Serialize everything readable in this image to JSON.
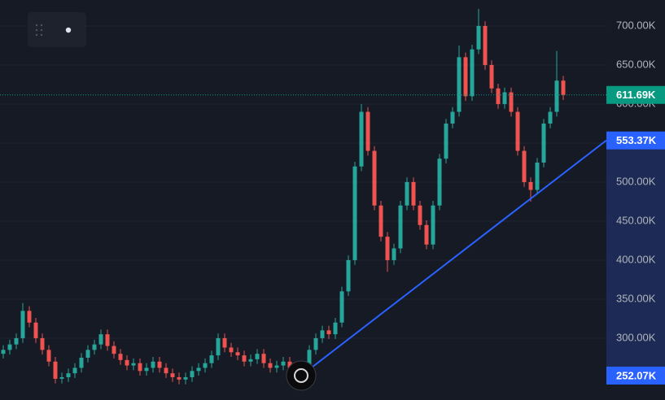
{
  "chart_data": {
    "type": "candlestick",
    "up_color": "#26a69a",
    "down_color": "#ef5350",
    "open": [
      280,
      285,
      292,
      300,
      335,
      320,
      300,
      285,
      270,
      248,
      250,
      255,
      262,
      275,
      285,
      292,
      305,
      290,
      280,
      272,
      265,
      268,
      258,
      262,
      270,
      262,
      255,
      250,
      247,
      250,
      258,
      262,
      268,
      278,
      300,
      288,
      282,
      278,
      270,
      273,
      280,
      268,
      262,
      265,
      270,
      262,
      258,
      265,
      285,
      300,
      310,
      305,
      320,
      360,
      400,
      520,
      590,
      540,
      470,
      430,
      400,
      415,
      470,
      500,
      470,
      445,
      420,
      470,
      530,
      575,
      590,
      660,
      610,
      670,
      700,
      650,
      620,
      600,
      615,
      590,
      540,
      500,
      490,
      525,
      575,
      590,
      630
    ],
    "high": [
      291,
      298,
      306,
      345,
      341,
      326,
      306,
      291,
      276,
      256,
      261,
      268,
      281,
      291,
      298,
      311,
      311,
      296,
      286,
      278,
      274,
      274,
      268,
      276,
      276,
      268,
      261,
      256,
      256,
      264,
      268,
      274,
      284,
      306,
      306,
      294,
      288,
      284,
      279,
      286,
      286,
      274,
      271,
      276,
      276,
      268,
      271,
      291,
      306,
      316,
      316,
      326,
      366,
      406,
      526,
      600,
      596,
      546,
      476,
      436,
      421,
      476,
      506,
      506,
      476,
      451,
      476,
      536,
      581,
      596,
      675,
      666,
      676,
      722,
      706,
      656,
      626,
      621,
      621,
      596,
      546,
      506,
      531,
      581,
      596,
      668,
      636
    ],
    "low": [
      274,
      279,
      286,
      294,
      314,
      294,
      279,
      264,
      242,
      242,
      244,
      249,
      256,
      269,
      279,
      286,
      284,
      274,
      266,
      259,
      259,
      252,
      252,
      256,
      256,
      249,
      244,
      241,
      241,
      244,
      252,
      256,
      262,
      272,
      282,
      276,
      272,
      264,
      264,
      267,
      262,
      256,
      256,
      259,
      256,
      252,
      252,
      259,
      279,
      294,
      299,
      299,
      314,
      354,
      394,
      514,
      534,
      464,
      424,
      385,
      394,
      409,
      464,
      464,
      439,
      414,
      414,
      464,
      524,
      569,
      584,
      604,
      604,
      664,
      644,
      614,
      594,
      594,
      584,
      534,
      494,
      475,
      484,
      519,
      569,
      584,
      605
    ],
    "close": [
      285,
      292,
      300,
      335,
      320,
      300,
      285,
      270,
      248,
      250,
      255,
      262,
      275,
      285,
      292,
      305,
      290,
      280,
      272,
      265,
      268,
      258,
      262,
      270,
      262,
      255,
      250,
      247,
      250,
      258,
      262,
      268,
      278,
      300,
      288,
      282,
      278,
      270,
      273,
      280,
      268,
      262,
      265,
      270,
      262,
      258,
      265,
      285,
      300,
      310,
      305,
      320,
      360,
      400,
      520,
      590,
      540,
      470,
      430,
      400,
      415,
      470,
      500,
      470,
      445,
      420,
      470,
      530,
      575,
      590,
      660,
      610,
      670,
      700,
      650,
      620,
      600,
      615,
      590,
      540,
      500,
      490,
      525,
      575,
      590,
      630,
      611.69
    ],
    "ylim": [
      220.8,
      733.3
    ],
    "yticks": [
      {
        "value": 300,
        "label": "300.00K"
      },
      {
        "value": 350,
        "label": "350.00K"
      },
      {
        "value": 400,
        "label": "400.00K"
      },
      {
        "value": 450,
        "label": "450.00K"
      },
      {
        "value": 500,
        "label": "500.00K"
      },
      {
        "value": 550,
        "label": "550.00K"
      },
      {
        "value": 600,
        "label": "600.00K"
      },
      {
        "value": 650,
        "label": "650.00K"
      },
      {
        "value": 700,
        "label": "700.00K"
      }
    ],
    "grid": true,
    "last_price": {
      "value": 611.69,
      "label": "611.69K",
      "color": "#089981"
    },
    "trendline": {
      "x": [
        45.75,
        92.6
      ],
      "values": [
        252.07,
        553.37
      ],
      "value_labels": [
        "252.07K",
        "553.37K"
      ],
      "color": "#2962ff"
    }
  }
}
